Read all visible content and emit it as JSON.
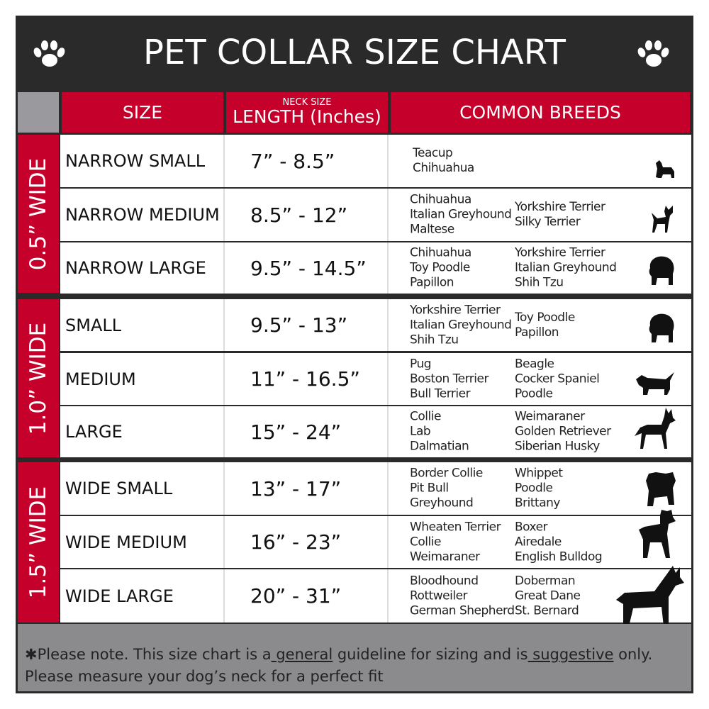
{
  "title": "PET COLLAR SIZE CHART",
  "colors": {
    "red": "#c4002b",
    "dark": "#2a2a2a",
    "gray": "#9a9a9e"
  },
  "headers": {
    "size": "SIZE",
    "length_small": "NECK SIZE",
    "length": "LENGTH (Inches)",
    "breeds": "COMMON BREEDS"
  },
  "groups": [
    {
      "label": "0.5” WIDE"
    },
    {
      "label": "1.0” WIDE"
    },
    {
      "label": "1.5” WIDE"
    }
  ],
  "rows": [
    {
      "size": "NARROW SMALL",
      "length": "7” - 8.5”",
      "breeds1": "Teacup\nChihuahua",
      "breeds2": "",
      "icon": "yorkie-icon"
    },
    {
      "size": "NARROW MEDIUM",
      "length": "8.5” - 12”",
      "breeds1": "Chihuahua\nItalian Greyhound\nMaltese",
      "breeds2": "Yorkshire Terrier\nSilky Terrier",
      "icon": "chihuahua-icon"
    },
    {
      "size": "NARROW LARGE",
      "length": "9.5” - 14.5”",
      "breeds1": "Chihuahua\nToy Poodle\nPapillon",
      "breeds2": "Yorkshire Terrier\nItalian Greyhound\nShih Tzu",
      "icon": "pomeranian-icon"
    },
    {
      "size": "SMALL",
      "length": "9.5” - 13”",
      "breeds1": "Yorkshire Terrier\nItalian Greyhound\nShih Tzu",
      "breeds2": "Toy Poodle\nPapillon",
      "icon": "pomeranian-icon"
    },
    {
      "size": "MEDIUM",
      "length": "11” - 16.5”",
      "breeds1": "Pug\nBoston Terrier\nBull Terrier",
      "breeds2": "Beagle\nCocker Spaniel\nPoodle",
      "icon": "dachshund-icon"
    },
    {
      "size": "LARGE",
      "length": "15” - 24”",
      "breeds1": "Collie\nLab\nDalmatian",
      "breeds2": "Weimaraner\nGolden Retriever\nSiberian Husky",
      "icon": "shepherd-icon"
    },
    {
      "size": "WIDE SMALL",
      "length": "13” - 17”",
      "breeds1": "Border Collie\nPit Bull\nGreyhound",
      "breeds2": "Whippet\nPoodle\nBrittany",
      "icon": "bulldog-icon"
    },
    {
      "size": "WIDE MEDIUM",
      "length": "16” - 23”",
      "breeds1": "Wheaten Terrier\nCollie\nWeimaraner",
      "breeds2": "Boxer\nAiredale\nEnglish Bulldog",
      "icon": "pitbull-icon"
    },
    {
      "size": "WIDE LARGE",
      "length": "20” - 31”",
      "breeds1": "Bloodhound\nRottweiler\nGerman Shepherd",
      "breeds2": "Doberman\nGreat Dane\nSt. Bernard",
      "icon": "doberman-icon"
    }
  ],
  "footer": {
    "p1": "✱Please note. This size chart is a",
    "u1": " general",
    "p2": " guideline for sizing and is",
    "u2": " suggestive",
    "p3": " only.",
    "line2": "Please measure your dog’s neck for a perfect fit"
  }
}
